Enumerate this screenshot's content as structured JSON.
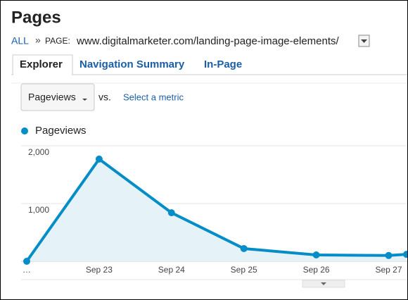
{
  "header": {
    "title": "Pages"
  },
  "breadcrumb": {
    "root": "ALL",
    "separator": "»",
    "label": "PAGE:",
    "value": "www.digitalmarketer.com/landing-page-image-elements/"
  },
  "tabs": [
    "Explorer",
    "Navigation Summary",
    "In-Page"
  ],
  "controls": {
    "metric": "Pageviews",
    "compare": "vs.",
    "select": "Select a metric"
  },
  "chart_data": {
    "type": "line",
    "categories": [
      "…",
      "Sep 23",
      "Sep 24",
      "Sep 25",
      "Sep 26",
      "Sep 27",
      null
    ],
    "series": [
      {
        "name": "Pageviews",
        "color": "#058dc7",
        "values": [
          0,
          1770,
          840,
          220,
          110,
          100,
          120
        ]
      }
    ],
    "ylim": [
      0,
      2000
    ],
    "yticks": [
      {
        "value": 2000,
        "label": "2,000"
      },
      {
        "value": 1000,
        "label": "1,000"
      }
    ],
    "grid": true,
    "fill": "#e5f3f9"
  }
}
